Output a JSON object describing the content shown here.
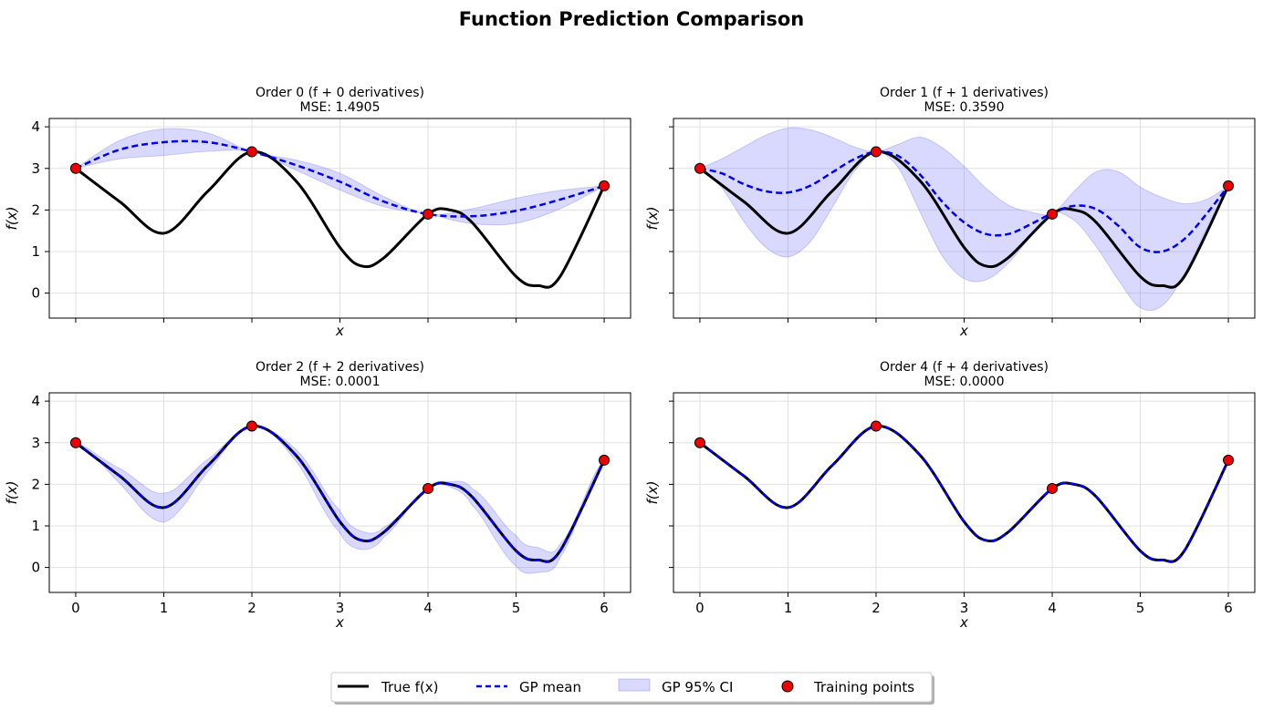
{
  "suptitle": "Function Prediction Comparison",
  "colors": {
    "true_line": "#000000",
    "gp_mean": "#0000ee",
    "ci_fill": "#6666ff",
    "training": "#ee0000",
    "grid": "#e0e0e0"
  },
  "legend": {
    "true_label": "True f(x)",
    "gp_mean_label": "GP mean",
    "ci_label": "GP 95% CI",
    "train_label": "Training points"
  },
  "chart_data": [
    {
      "type": "line",
      "title_line1": "Order 0 (f + 0 derivatives)",
      "title_line2": "MSE: 1.4905",
      "xlabel": "x",
      "ylabel": "f(x)",
      "xlim": [
        -0.3,
        6.3
      ],
      "ylim": [
        -0.6,
        4.2
      ],
      "xticks": [
        "0",
        "1",
        "2",
        "3",
        "4",
        "5",
        "6"
      ],
      "yticks": [
        "0",
        "1",
        "2",
        "3",
        "4"
      ],
      "show_xtick_labels": false,
      "show_ytick_labels": true,
      "gp_x": [
        0,
        0.5,
        1,
        1.5,
        2,
        2.5,
        3,
        3.5,
        4,
        4.5,
        5,
        5.5,
        6
      ],
      "gp_mean": [
        3.0,
        3.45,
        3.63,
        3.63,
        3.4,
        3.08,
        2.68,
        2.2,
        1.9,
        1.85,
        1.98,
        2.25,
        2.58
      ],
      "ci_half": [
        0.0,
        0.22,
        0.32,
        0.22,
        0.0,
        0.12,
        0.2,
        0.12,
        0.0,
        0.18,
        0.3,
        0.22,
        0.0
      ]
    },
    {
      "type": "line",
      "title_line1": "Order 1 (f + 1 derivatives)",
      "title_line2": "MSE: 0.3590",
      "xlabel": "x",
      "ylabel": "f(x)",
      "xlim": [
        -0.3,
        6.3
      ],
      "ylim": [
        -0.6,
        4.2
      ],
      "xticks": [
        "0",
        "1",
        "2",
        "3",
        "4",
        "5",
        "6"
      ],
      "yticks": [
        "0",
        "1",
        "2",
        "3",
        "4"
      ],
      "show_xtick_labels": false,
      "show_ytick_labels": false,
      "gp_x": [
        0,
        0.25,
        0.5,
        0.75,
        1,
        1.25,
        1.5,
        1.75,
        2,
        2.25,
        2.5,
        2.75,
        3,
        3.25,
        3.5,
        3.75,
        4,
        4.25,
        4.5,
        4.75,
        5,
        5.25,
        5.5,
        5.75,
        6
      ],
      "gp_mean": [
        3.0,
        2.88,
        2.62,
        2.45,
        2.42,
        2.58,
        2.9,
        3.22,
        3.4,
        3.3,
        2.85,
        2.2,
        1.7,
        1.42,
        1.42,
        1.65,
        1.92,
        2.1,
        2.02,
        1.62,
        1.1,
        1.0,
        1.3,
        1.9,
        2.58
      ],
      "ci_half": [
        0.0,
        0.35,
        0.9,
        1.35,
        1.55,
        1.35,
        0.85,
        0.3,
        0.0,
        0.28,
        0.9,
        1.3,
        1.35,
        1.1,
        0.7,
        0.3,
        0.0,
        0.35,
        0.9,
        1.3,
        1.45,
        1.3,
        0.85,
        0.35,
        0.0
      ]
    },
    {
      "type": "line",
      "title_line1": "Order 2 (f + 2 derivatives)",
      "title_line2": "MSE: 0.0001",
      "xlabel": "x",
      "ylabel": "f(x)",
      "xlim": [
        -0.3,
        6.3
      ],
      "ylim": [
        -0.6,
        4.2
      ],
      "xticks": [
        "0",
        "1",
        "2",
        "3",
        "4",
        "5",
        "6"
      ],
      "yticks": [
        "0",
        "1",
        "2",
        "3",
        "4"
      ],
      "show_xtick_labels": true,
      "show_ytick_labels": true,
      "gp_x": [
        0,
        0.25,
        0.5,
        0.75,
        1,
        1.25,
        1.5,
        1.75,
        2,
        2.25,
        2.5,
        2.75,
        3,
        3.25,
        3.5,
        3.75,
        4,
        4.25,
        4.5,
        4.75,
        5,
        5.25,
        5.5,
        5.75,
        6
      ],
      "gp_mean": "true",
      "ci_half": [
        0.0,
        0.05,
        0.18,
        0.3,
        0.35,
        0.28,
        0.15,
        0.04,
        0.0,
        0.04,
        0.14,
        0.24,
        0.27,
        0.22,
        0.12,
        0.04,
        0.0,
        0.06,
        0.2,
        0.32,
        0.37,
        0.3,
        0.16,
        0.05,
        0.0
      ]
    },
    {
      "type": "line",
      "title_line1": "Order 4 (f + 4 derivatives)",
      "title_line2": "MSE: 0.0000",
      "xlabel": "x",
      "ylabel": "f(x)",
      "xlim": [
        -0.3,
        6.3
      ],
      "ylim": [
        -0.6,
        4.2
      ],
      "xticks": [
        "0",
        "1",
        "2",
        "3",
        "4",
        "5",
        "6"
      ],
      "yticks": [
        "0",
        "1",
        "2",
        "3",
        "4"
      ],
      "show_xtick_labels": true,
      "show_ytick_labels": false,
      "gp_x": [
        0,
        1,
        2,
        3,
        4,
        5,
        6
      ],
      "gp_mean": "true",
      "ci_half": [
        0,
        0,
        0,
        0,
        0,
        0,
        0
      ]
    }
  ],
  "true_function": {
    "x": [
      0,
      0.5,
      1,
      1.5,
      2,
      2.5,
      3,
      3.25,
      3.5,
      4,
      4.25,
      4.5,
      5,
      5.25,
      5.5,
      6
    ],
    "y": [
      3.0,
      2.2,
      1.44,
      2.45,
      3.4,
      2.7,
      1.1,
      0.65,
      0.85,
      1.9,
      2.0,
      1.7,
      0.4,
      0.18,
      0.4,
      2.58
    ]
  },
  "training_points": {
    "x": [
      0,
      2,
      4,
      6
    ],
    "y": [
      3.0,
      3.4,
      1.9,
      2.58
    ]
  }
}
